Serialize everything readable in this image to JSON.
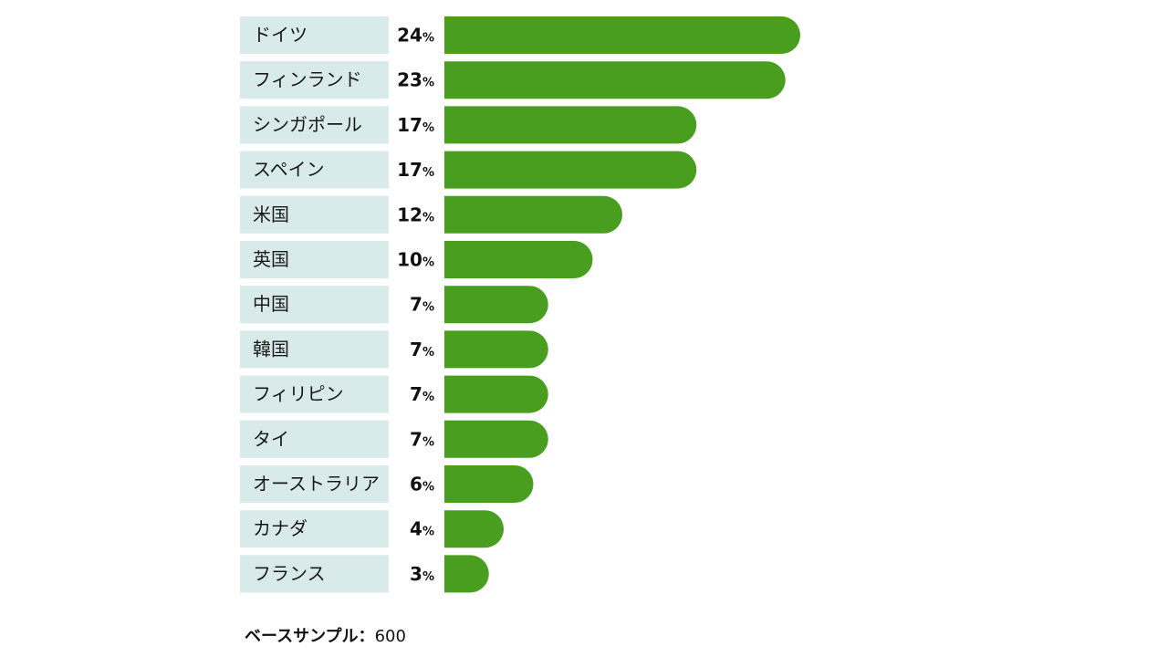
{
  "chart_data": {
    "type": "bar",
    "orientation": "horizontal",
    "categories": [
      "ドイツ",
      "フィンランド",
      "シンガポール",
      "スペイン",
      "米国",
      "英国",
      "中国",
      "韓国",
      "フィリピン",
      "タイ",
      "オーストラリア",
      "カナダ",
      "フランス"
    ],
    "values": [
      24,
      23,
      17,
      17,
      12,
      10,
      7,
      7,
      7,
      7,
      6,
      4,
      3
    ],
    "unit": "%",
    "xlim": [
      0,
      24
    ],
    "grid": false,
    "legend": "none",
    "bar_color": "#4a9e1f",
    "label_bg_color": "#d9eaeb"
  },
  "footer": {
    "label": "ベースサンプル：",
    "value": "600"
  }
}
